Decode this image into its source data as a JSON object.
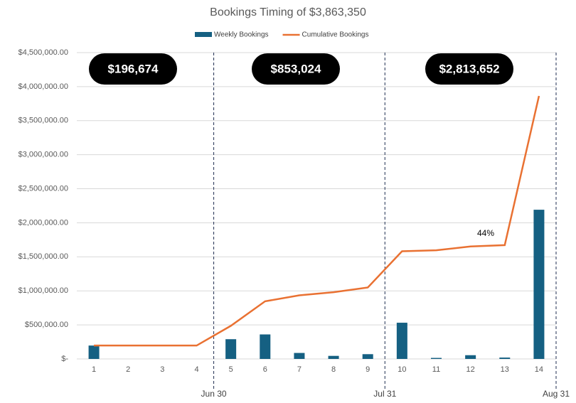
{
  "chart_data": {
    "type": "bar_line",
    "title": "Bookings Timing of $3,863,350",
    "categories": [
      "1",
      "2",
      "3",
      "4",
      "5",
      "6",
      "7",
      "8",
      "9",
      "10",
      "11",
      "12",
      "13",
      "14"
    ],
    "series": [
      {
        "name": "Weekly Bookings",
        "color": "#156082",
        "type": "bar",
        "values": [
          196674,
          0,
          0,
          0,
          290000,
          360000,
          88024,
          45000,
          70000,
          532000,
          15000,
          55000,
          20000,
          2191652
        ]
      },
      {
        "name": "Cumulative Bookings",
        "color": "#e97132",
        "type": "line",
        "values": [
          196674,
          196674,
          196674,
          196674,
          486674,
          846674,
          934698,
          979698,
          1049698,
          1581698,
          1596698,
          1651698,
          1671698,
          3863350
        ]
      }
    ],
    "ylim": [
      0,
      4500000
    ],
    "yticks": [
      {
        "value": 0,
        "label": "$-"
      },
      {
        "value": 500000,
        "label": "$500,000.00"
      },
      {
        "value": 1000000,
        "label": "$1,000,000.00"
      },
      {
        "value": 1500000,
        "label": "$1,500,000.00"
      },
      {
        "value": 2000000,
        "label": "$2,000,000.00"
      },
      {
        "value": 2500000,
        "label": "$2,500,000.00"
      },
      {
        "value": 3000000,
        "label": "$3,000,000.00"
      },
      {
        "value": 3500000,
        "label": "$3,500,000.00"
      },
      {
        "value": 4000000,
        "label": "$4,000,000.00"
      },
      {
        "value": 4500000,
        "label": "$4,500,000.00"
      }
    ],
    "grid": true,
    "legend": "top",
    "period_totals": [
      "$196,674",
      "$853,024",
      "$2,813,652"
    ],
    "period_ends": [
      "Jun 30",
      "Jul 31",
      "Aug 31"
    ],
    "annotation": "44%"
  }
}
